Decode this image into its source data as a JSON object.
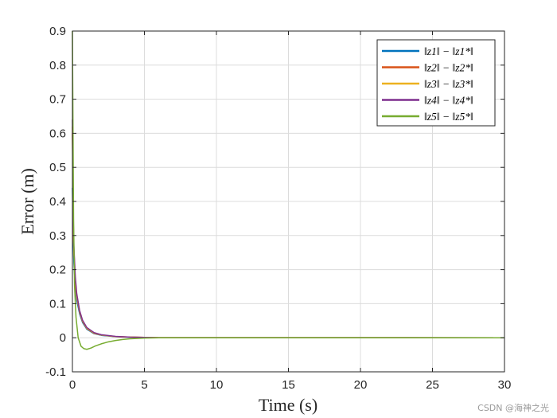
{
  "chart_data": {
    "type": "line",
    "title": "",
    "xlabel": "Time (s)",
    "ylabel": "Error (m)",
    "xlim": [
      0,
      30
    ],
    "ylim": [
      -0.1,
      0.9
    ],
    "xticks": [
      "0",
      "5",
      "10",
      "15",
      "20",
      "25",
      "30"
    ],
    "yticks": [
      "-0.1",
      "0",
      "0.1",
      "0.2",
      "0.3",
      "0.4",
      "0.5",
      "0.6",
      "0.7",
      "0.8",
      "0.9"
    ],
    "xtick_values": [
      0,
      5,
      10,
      15,
      20,
      25,
      30
    ],
    "ytick_values": [
      -0.1,
      0,
      0.1,
      0.2,
      0.3,
      0.4,
      0.5,
      0.6,
      0.7,
      0.8,
      0.9
    ],
    "grid": true,
    "legend_position": "top-right",
    "series": [
      {
        "name": "‖z1‖ − ‖z1*‖",
        "color": "#0072BD",
        "x": [
          0,
          0.05,
          0.1,
          0.2,
          0.3,
          0.5,
          0.7,
          1,
          1.5,
          2,
          3,
          4,
          5,
          6,
          30
        ],
        "y": [
          0.44,
          0.3,
          0.22,
          0.15,
          0.11,
          0.07,
          0.045,
          0.025,
          0.012,
          0.007,
          0.003,
          0.0015,
          0.0008,
          0.0003,
          0
        ]
      },
      {
        "name": "‖z2‖ − ‖z2*‖",
        "color": "#D95319",
        "x": [
          0,
          0.05,
          0.1,
          0.2,
          0.3,
          0.5,
          0.7,
          1,
          1.5,
          2,
          3,
          4,
          5,
          6,
          30
        ],
        "y": [
          0.6,
          0.35,
          0.25,
          0.16,
          0.12,
          0.075,
          0.048,
          0.027,
          0.013,
          0.008,
          0.0035,
          0.0018,
          0.0009,
          0.0003,
          0
        ]
      },
      {
        "name": "‖z3‖ − ‖z3*‖",
        "color": "#EDB120",
        "x": [
          0,
          0.05,
          0.1,
          0.2,
          0.3,
          0.5,
          0.7,
          1,
          1.5,
          2,
          3,
          4,
          5,
          6,
          30
        ],
        "y": [
          0.62,
          0.36,
          0.26,
          0.17,
          0.125,
          0.078,
          0.05,
          0.028,
          0.014,
          0.008,
          0.0035,
          0.0018,
          0.0009,
          0.0003,
          0
        ]
      },
      {
        "name": "‖z4‖ − ‖z4*‖",
        "color": "#7E2F8E",
        "x": [
          0,
          0.05,
          0.1,
          0.2,
          0.3,
          0.5,
          0.7,
          1,
          1.5,
          2,
          3,
          4,
          5,
          6,
          30
        ],
        "y": [
          0.64,
          0.37,
          0.27,
          0.18,
          0.13,
          0.08,
          0.052,
          0.03,
          0.015,
          0.009,
          0.004,
          0.002,
          0.001,
          0.0003,
          0
        ]
      },
      {
        "name": "‖z5‖ − ‖z5*‖",
        "color": "#77AC30",
        "x": [
          0,
          0.04,
          0.08,
          0.15,
          0.25,
          0.4,
          0.6,
          0.8,
          1,
          1.3,
          1.6,
          2,
          2.5,
          3,
          3.5,
          4,
          5,
          6,
          6.5,
          30
        ],
        "y": [
          0.9,
          0.62,
          0.35,
          0.15,
          0.06,
          0.0,
          -0.025,
          -0.032,
          -0.034,
          -0.03,
          -0.024,
          -0.018,
          -0.012,
          -0.008,
          -0.005,
          -0.003,
          -0.001,
          -0.0002,
          0,
          0
        ]
      }
    ]
  },
  "watermark": "CSDN @海神之光"
}
